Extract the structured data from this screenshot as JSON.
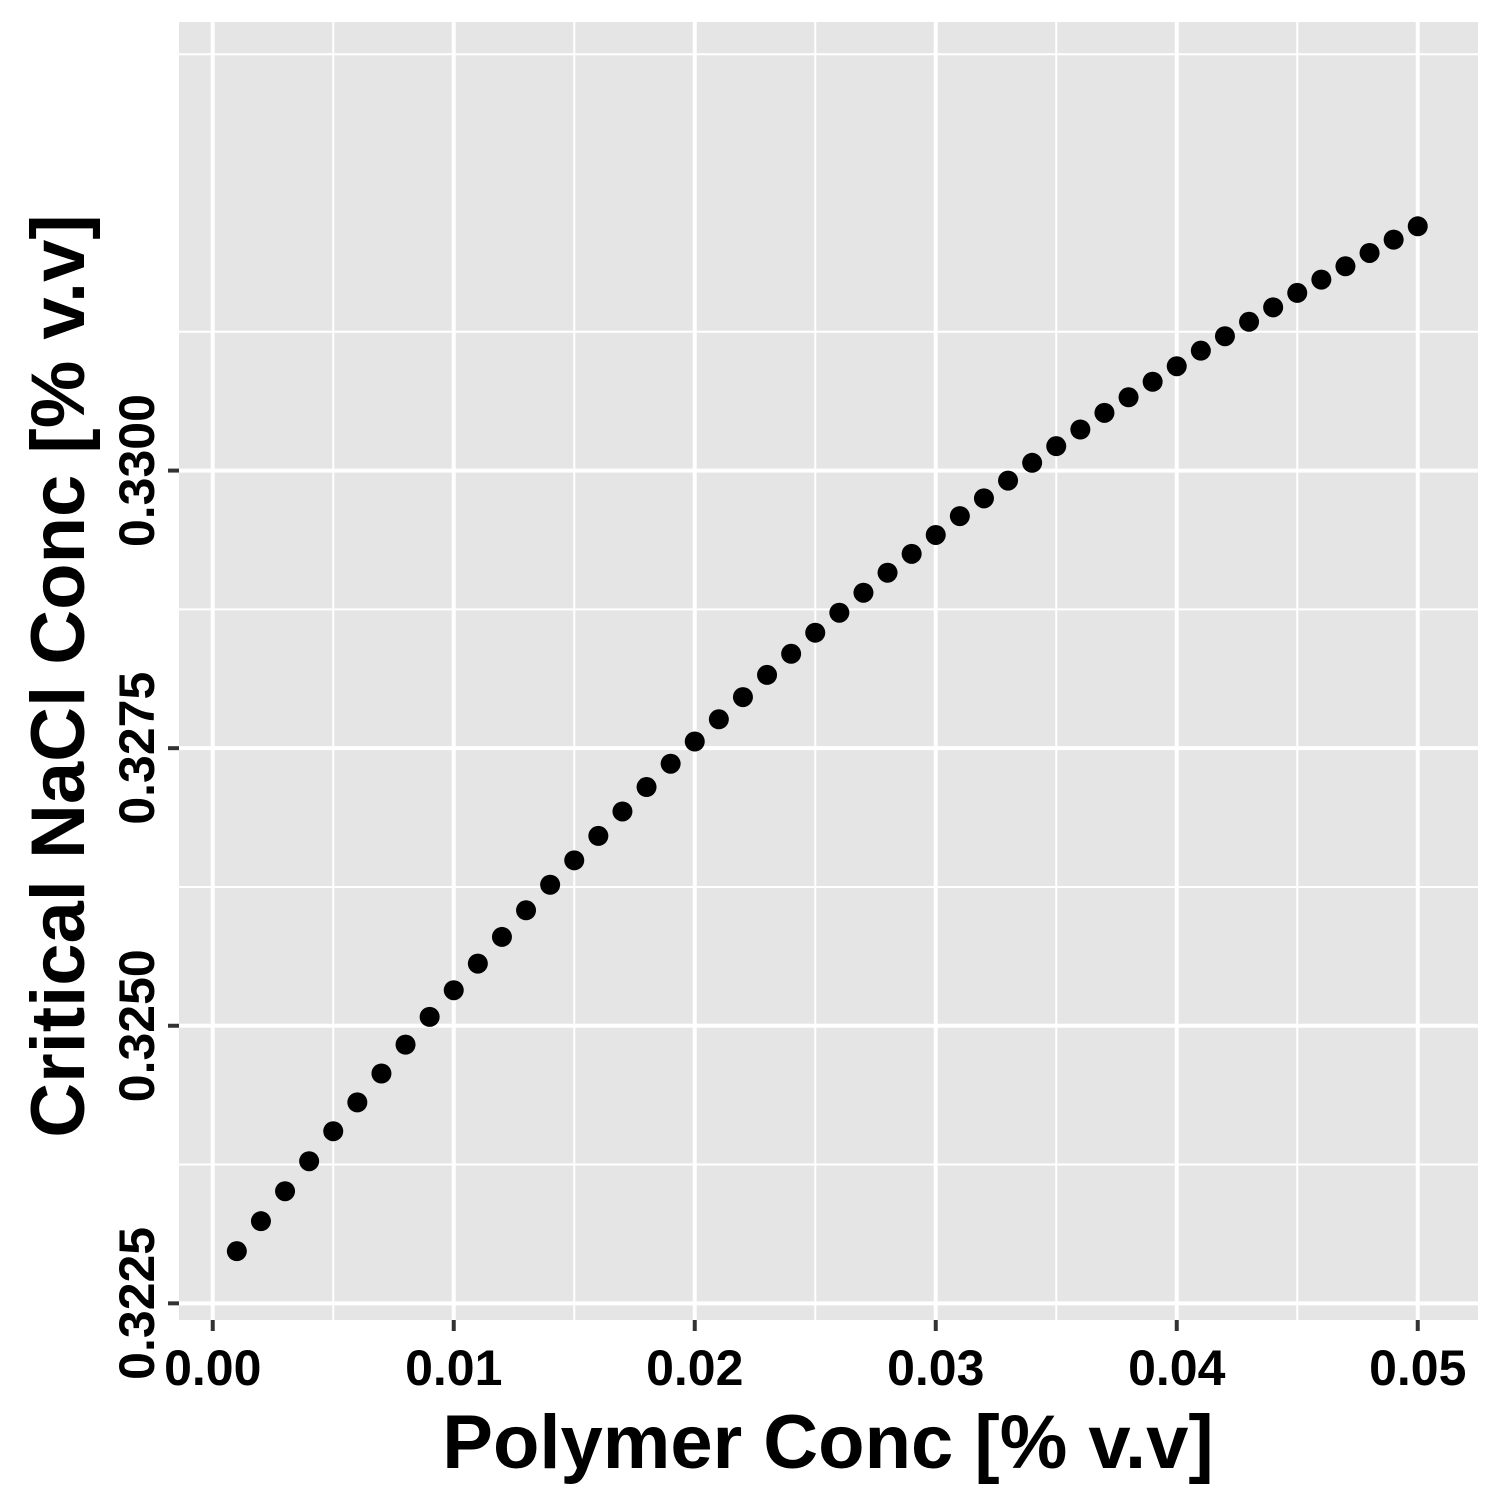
{
  "chart_data": {
    "type": "scatter",
    "title": "",
    "xlabel": "Polymer Conc [% v.v]",
    "ylabel": "Critical NaCl Conc [% v.v]",
    "xlim": [
      -0.0014,
      0.0525
    ],
    "ylim": [
      0.32235,
      0.33404
    ],
    "x_ticks": [
      0.0,
      0.01,
      0.02,
      0.03,
      0.04,
      0.05
    ],
    "x_tick_labels": [
      "0.00",
      "0.01",
      "0.02",
      "0.03",
      "0.04",
      "0.05"
    ],
    "y_ticks": [
      0.3225,
      0.325,
      0.3275,
      0.33
    ],
    "y_tick_labels": [
      "0.3225",
      "0.3250",
      "0.3275",
      "0.3300"
    ],
    "grid": true,
    "legend": "none",
    "colors": {
      "panel": "#e5e5e5",
      "grid": "#ffffff",
      "point": "#000000"
    },
    "series": [
      {
        "x": [
          0.001,
          0.002,
          0.003,
          0.004,
          0.005,
          0.006,
          0.007,
          0.008,
          0.009,
          0.01,
          0.011,
          0.012,
          0.013,
          0.014,
          0.015,
          0.016,
          0.017,
          0.018,
          0.019,
          0.02,
          0.021,
          0.022,
          0.023,
          0.024,
          0.025,
          0.026,
          0.027,
          0.028,
          0.029,
          0.03,
          0.031,
          0.032,
          0.033,
          0.034,
          0.035,
          0.036,
          0.037,
          0.038,
          0.039,
          0.04,
          0.041,
          0.042,
          0.043,
          0.044,
          0.045,
          0.046,
          0.047,
          0.048,
          0.049,
          0.05
        ],
        "y": [
          0.32297,
          0.32324,
          0.32351,
          0.32378,
          0.32405,
          0.32431,
          0.32457,
          0.32483,
          0.32508,
          0.32532,
          0.32556,
          0.3258,
          0.32604,
          0.32627,
          0.32649,
          0.32671,
          0.32693,
          0.32715,
          0.32736,
          0.32756,
          0.32776,
          0.32796,
          0.32816,
          0.32835,
          0.32854,
          0.32872,
          0.3289,
          0.32908,
          0.32925,
          0.32942,
          0.32959,
          0.32975,
          0.32991,
          0.33007,
          0.33022,
          0.33037,
          0.33052,
          0.33066,
          0.3308,
          0.33094,
          0.33108,
          0.33121,
          0.33134,
          0.33147,
          0.3316,
          0.33172,
          0.33184,
          0.33196,
          0.33208,
          0.3322
        ]
      }
    ]
  }
}
